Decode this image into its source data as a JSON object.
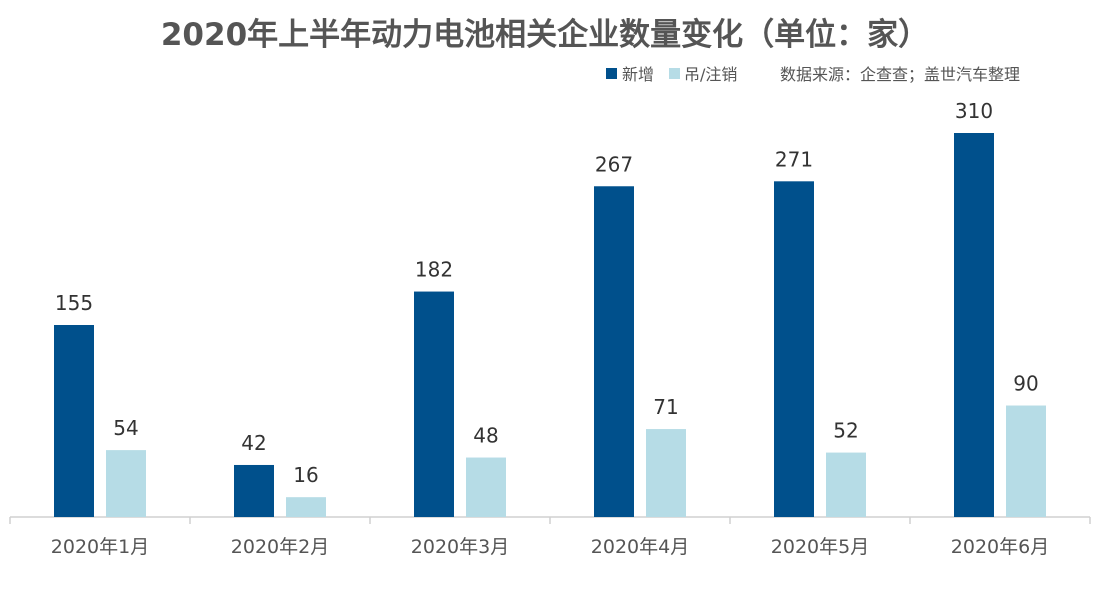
{
  "chart_data": {
    "type": "bar",
    "title": "2020年上半年动力电池相关企业数量变化（单位：家）",
    "source": "数据来源：企查查；盖世汽车整理",
    "categories": [
      "2020年1月",
      "2020年2月",
      "2020年3月",
      "2020年4月",
      "2020年5月",
      "2020年6月"
    ],
    "series": [
      {
        "name": "新增",
        "color": "#00508c",
        "values": [
          155,
          42,
          182,
          267,
          271,
          310
        ]
      },
      {
        "name": "吊/注销",
        "color": "#b6dce6",
        "values": [
          54,
          16,
          48,
          71,
          52,
          90
        ]
      }
    ],
    "ylim": [
      0,
      340
    ],
    "grid": false,
    "legend": "top-right",
    "data_labels": true
  }
}
